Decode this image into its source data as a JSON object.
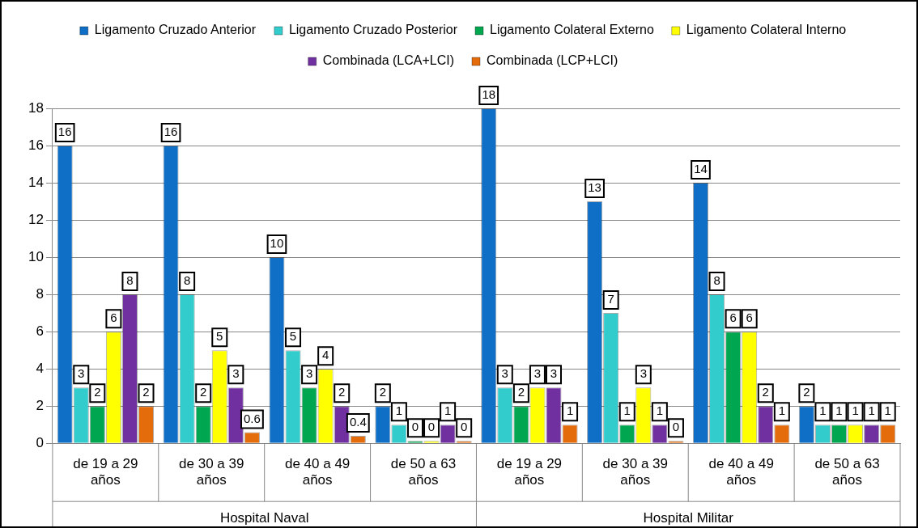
{
  "chart_data": {
    "type": "bar",
    "categories": [
      "de 19 a 29 años",
      "de 30 a 39 años",
      "de 40 a 49 años",
      "de 50 a 63 años",
      "de 19 a 29 años",
      "de 30 a 39 años",
      "de 40 a 49 años",
      "de 50 a 63 años"
    ],
    "series": [
      {
        "name": "Ligamento Cruzado Anterior",
        "color": "#0f6fc6",
        "values": [
          16,
          16,
          10,
          2,
          18,
          13,
          14,
          2
        ]
      },
      {
        "name": "Ligamento Cruzado Posterior",
        "color": "#33cccc",
        "values": [
          3,
          8,
          5,
          1,
          3,
          7,
          8,
          1
        ]
      },
      {
        "name": "Ligamento Colateral Externo",
        "color": "#00a650",
        "values": [
          2,
          2,
          3,
          0,
          2,
          1,
          6,
          1
        ]
      },
      {
        "name": "Ligamento Colateral Interno",
        "color": "#ffff00",
        "values": [
          6,
          5,
          4,
          0,
          3,
          3,
          6,
          1
        ]
      },
      {
        "name": "Combinada (LCA+LCI)",
        "color": "#7030a0",
        "values": [
          8,
          3,
          2,
          1,
          3,
          1,
          2,
          1
        ]
      },
      {
        "name": "Combinada (LCP+LCI)",
        "color": "#e46c0a",
        "values": [
          2,
          0.6,
          0.4,
          0,
          1,
          0,
          1,
          1
        ]
      }
    ],
    "ylim": [
      0,
      18
    ],
    "yticks": [
      0,
      2,
      4,
      6,
      8,
      10,
      12,
      14,
      16,
      18
    ],
    "grid": "y",
    "legend": "top",
    "data_labels": true,
    "annotations": [
      "Hospital Naval",
      "Hospital Militar"
    ]
  }
}
